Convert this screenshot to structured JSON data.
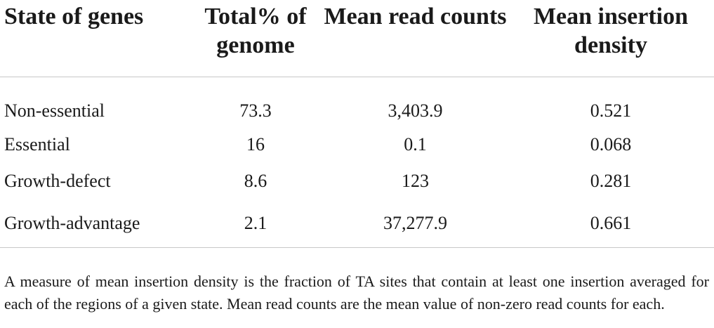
{
  "table": {
    "headers": [
      "State of genes",
      "Total% of genome",
      "Mean read counts",
      "Mean insertion density"
    ],
    "rows": [
      [
        "Non-essential",
        "73.3",
        "3,403.9",
        "0.521"
      ],
      [
        "Essential",
        "16",
        "0.1",
        "0.068"
      ],
      [
        "Growth-defect",
        "8.6",
        "123",
        "0.281"
      ],
      [
        "Growth-advantage",
        "2.1",
        "37,277.9",
        "0.661"
      ]
    ]
  },
  "footnote": "A measure of mean insertion density is the fraction of TA sites that contain at least one insertion averaged for each of the regions of a given state. Mean read counts are the mean value of non-zero read counts for each."
}
